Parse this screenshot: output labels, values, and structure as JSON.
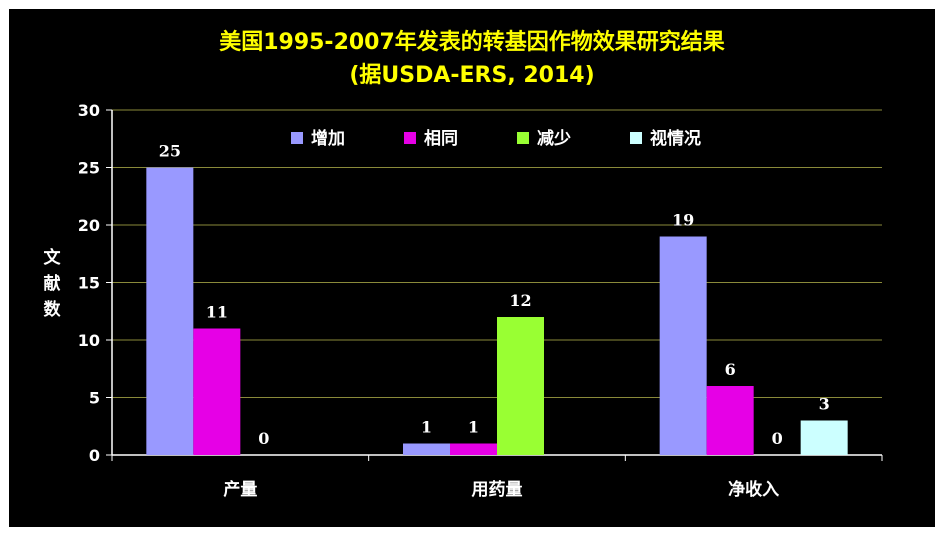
{
  "chart_data": {
    "type": "bar",
    "title": "美国1995-2007年发表的转基因作物效果研究结果",
    "subtitle": "(据USDA-ERS, 2014)",
    "ylabel": "文献数",
    "xlabel": "",
    "ylim": [
      0,
      30
    ],
    "yticks": [
      0,
      5,
      10,
      15,
      20,
      25,
      30
    ],
    "categories": [
      "产量",
      "用药量",
      "净收入"
    ],
    "series": [
      {
        "name": "增加",
        "color": "#9999ff",
        "values": [
          25,
          1,
          19
        ]
      },
      {
        "name": "相同",
        "color": "#e600e6",
        "values": [
          11,
          1,
          6
        ]
      },
      {
        "name": "减少",
        "color": "#99ff33",
        "values": [
          0,
          12,
          0
        ]
      },
      {
        "name": "视情况",
        "color": "#ccffff",
        "values": [
          null,
          null,
          3
        ]
      }
    ],
    "grid": true,
    "legend_position": "top"
  }
}
